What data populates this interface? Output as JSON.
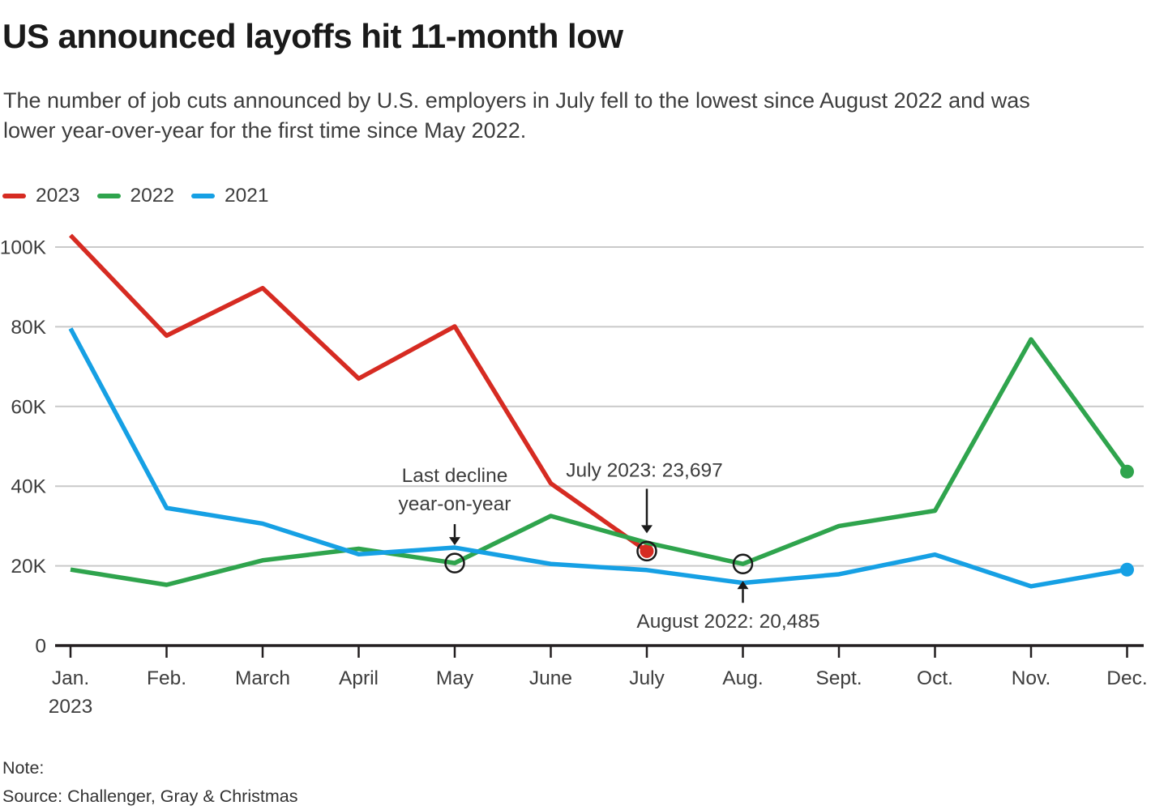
{
  "header": {
    "title": "US announced layoffs hit 11-month low",
    "subtitle_line1": "The number of job cuts announced by U.S. employers in July fell to the lowest since August 2022 and was",
    "subtitle_line2": "lower year-over-year for the first time since May 2022."
  },
  "legend": [
    {
      "label": "2023",
      "color": "#d62b22"
    },
    {
      "label": "2022",
      "color": "#2fa44d"
    },
    {
      "label": "2021",
      "color": "#16a0e4"
    }
  ],
  "footer": {
    "note_label": "Note:",
    "source": "Source: Challenger, Gray & Christmas"
  },
  "chart_data": {
    "type": "line",
    "title": "US announced layoffs hit 11-month low",
    "categories": [
      "Jan.",
      "Feb.",
      "March",
      "April",
      "May",
      "June",
      "July",
      "Aug.",
      "Sept.",
      "Oct.",
      "Nov.",
      "Dec."
    ],
    "x_sub_label": "2023",
    "xlabel": "",
    "ylabel": "",
    "ylim": [
      0,
      105000
    ],
    "grid": true,
    "legend_position": "top-left",
    "y_ticks": [
      {
        "label": "100K",
        "value": 100000
      },
      {
        "label": "80K",
        "value": 80000
      },
      {
        "label": "60K",
        "value": 60000
      },
      {
        "label": "40K",
        "value": 40000
      },
      {
        "label": "20K",
        "value": 20000
      },
      {
        "label": "0",
        "value": 0
      }
    ],
    "series": [
      {
        "name": "2023",
        "color": "#d62b22",
        "end_dot": true,
        "values": [
          102943,
          77770,
          89703,
          66995,
          80089,
          40709,
          23697
        ]
      },
      {
        "name": "2022",
        "color": "#2fa44d",
        "end_dot": true,
        "values": [
          19064,
          15245,
          21387,
          24286,
          20712,
          32517,
          25810,
          20485,
          29989,
          33843,
          76835,
          43651
        ]
      },
      {
        "name": "2021",
        "color": "#16a0e4",
        "end_dot": true,
        "values": [
          79552,
          34531,
          30603,
          22913,
          24586,
          20476,
          18942,
          15723,
          17895,
          22822,
          14875,
          19052
        ]
      }
    ],
    "circled_points": [
      {
        "series": 1,
        "month_index": 4
      },
      {
        "series": 0,
        "month_index": 6
      },
      {
        "series": 1,
        "month_index": 7
      }
    ],
    "annotations": [
      {
        "id": "last-decline",
        "lines": [
          "Last decline",
          "year-on-year"
        ],
        "series": 1,
        "month_index": 4,
        "arrow": "down",
        "text_dx": 0
      },
      {
        "id": "july-2023",
        "lines": [
          "July 2023: 23,697"
        ],
        "series": 0,
        "month_index": 6,
        "arrow": "down",
        "text_dx": -3
      },
      {
        "id": "august-2022",
        "lines": [
          "August 2022: 20,485"
        ],
        "series": 1,
        "month_index": 7,
        "arrow": "up",
        "text_dx": -18
      }
    ]
  }
}
